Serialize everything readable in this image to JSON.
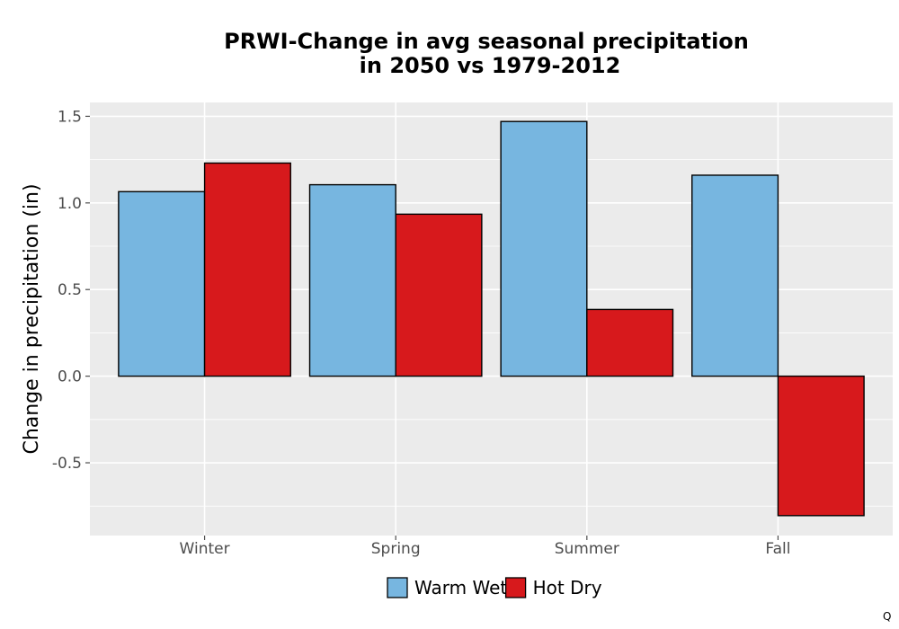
{
  "chart_data": {
    "type": "bar",
    "title_lines": [
      "PRWI-Change in avg seasonal precipitation",
      "in 2050 vs 1979-2012"
    ],
    "ylabel": "Change in precipitation (in)",
    "xlabel": "",
    "categories": [
      "Winter",
      "Spring",
      "Summer",
      "Fall"
    ],
    "series": [
      {
        "name": "Warm Wet",
        "color": "#77b6e0",
        "values": [
          1.065,
          1.105,
          1.47,
          1.16
        ]
      },
      {
        "name": "Hot Dry",
        "color": "#d7191c",
        "values": [
          1.23,
          0.935,
          0.385,
          -0.805
        ]
      }
    ],
    "ylim": [
      -0.92,
      1.58
    ],
    "yticks": [
      -0.5,
      0.0,
      0.5,
      1.0,
      1.5
    ],
    "ytick_labels": [
      "-0.5",
      "0.0",
      "0.5",
      "1.0",
      "1.5"
    ],
    "grid": true,
    "legend_position": "bottom",
    "corner_text": "Q"
  }
}
